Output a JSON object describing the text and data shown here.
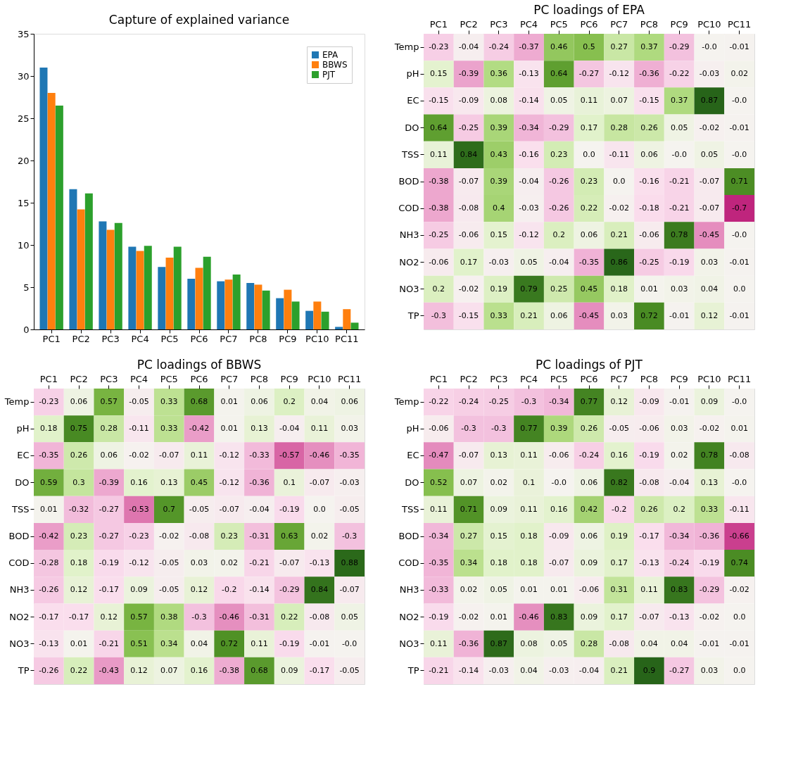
{
  "chart_data": [
    {
      "type": "bar",
      "title": "Capture of explained variance",
      "categories": [
        "PC1",
        "PC2",
        "PC3",
        "PC4",
        "PC5",
        "PC6",
        "PC7",
        "PC8",
        "PC9",
        "PC10",
        "PC11"
      ],
      "series": [
        {
          "name": "EPA",
          "color": "#1f77b4",
          "values": [
            31.0,
            16.6,
            12.8,
            9.8,
            7.4,
            6.0,
            5.7,
            5.5,
            3.7,
            2.2,
            0.3
          ]
        },
        {
          "name": "BBWS",
          "color": "#ff7f0e",
          "values": [
            28.0,
            14.2,
            11.8,
            9.3,
            8.5,
            7.3,
            5.9,
            5.3,
            4.7,
            3.3,
            2.4
          ]
        },
        {
          "name": "PJT",
          "color": "#2ca02c",
          "values": [
            26.5,
            16.1,
            12.6,
            9.9,
            9.8,
            8.6,
            6.5,
            4.6,
            3.3,
            2.1,
            0.8
          ]
        }
      ],
      "ylim": [
        0,
        35
      ],
      "yticks": [
        0,
        5,
        10,
        15,
        20,
        25,
        30,
        35
      ],
      "legend": "top right",
      "grid": false
    },
    {
      "type": "heatmap",
      "title": "PC loadings of EPA",
      "categories": [
        "PC1",
        "PC2",
        "PC3",
        "PC4",
        "PC5",
        "PC6",
        "PC7",
        "PC8",
        "PC9",
        "PC10",
        "PC11"
      ],
      "y_categories": [
        "Temp",
        "pH",
        "EC",
        "DO",
        "TSS",
        "BOD",
        "COD",
        "NH3",
        "NO2",
        "NO3",
        "TP"
      ],
      "data_labels": true,
      "cells": [
        [
          -0.23,
          -0.04,
          -0.24,
          -0.37,
          0.46,
          0.5,
          0.27,
          0.37,
          -0.29,
          -0.0,
          -0.01
        ],
        [
          0.15,
          -0.39,
          0.36,
          -0.13,
          0.64,
          -0.27,
          -0.12,
          -0.36,
          -0.22,
          -0.03,
          0.02
        ],
        [
          -0.15,
          -0.09,
          0.08,
          -0.14,
          0.05,
          0.11,
          0.07,
          -0.15,
          0.37,
          0.87,
          -0.0
        ],
        [
          0.64,
          -0.25,
          0.39,
          -0.34,
          -0.29,
          0.17,
          0.28,
          0.26,
          0.05,
          -0.02,
          -0.01
        ],
        [
          0.11,
          0.84,
          0.43,
          -0.16,
          0.23,
          0.0,
          -0.11,
          0.06,
          -0.0,
          0.05,
          -0.0
        ],
        [
          -0.38,
          -0.07,
          0.39,
          -0.04,
          -0.26,
          0.23,
          0.0,
          -0.16,
          -0.21,
          -0.07,
          0.71
        ],
        [
          -0.38,
          -0.08,
          0.4,
          -0.03,
          -0.26,
          0.22,
          -0.02,
          -0.18,
          -0.21,
          -0.07,
          -0.7
        ],
        [
          -0.25,
          -0.06,
          0.15,
          -0.12,
          0.2,
          0.06,
          0.21,
          -0.06,
          0.78,
          -0.45,
          -0.0
        ],
        [
          -0.06,
          0.17,
          -0.03,
          0.05,
          -0.04,
          -0.35,
          0.86,
          -0.25,
          -0.19,
          0.03,
          -0.01
        ],
        [
          0.2,
          -0.02,
          0.19,
          0.79,
          0.25,
          0.45,
          0.18,
          0.01,
          0.03,
          0.04,
          0.0
        ],
        [
          -0.3,
          -0.15,
          0.33,
          0.21,
          0.06,
          -0.45,
          0.03,
          0.72,
          -0.01,
          0.12,
          -0.01
        ]
      ],
      "cell_labels": [
        [
          "-0.23",
          "-0.04",
          "-0.24",
          "-0.37",
          "0.46",
          "0.5",
          "0.27",
          "0.37",
          "-0.29",
          "-0.0",
          "-0.01"
        ],
        [
          "0.15",
          "-0.39",
          "0.36",
          "-0.13",
          "0.64",
          "-0.27",
          "-0.12",
          "-0.36",
          "-0.22",
          "-0.03",
          "0.02"
        ],
        [
          "-0.15",
          "-0.09",
          "0.08",
          "-0.14",
          "0.05",
          "0.11",
          "0.07",
          "-0.15",
          "0.37",
          "0.87",
          "-0.0"
        ],
        [
          "0.64",
          "-0.25",
          "0.39",
          "-0.34",
          "-0.29",
          "0.17",
          "0.28",
          "0.26",
          "0.05",
          "-0.02",
          "-0.01"
        ],
        [
          "0.11",
          "0.84",
          "0.43",
          "-0.16",
          "0.23",
          "0.0",
          "-0.11",
          "0.06",
          "-0.0",
          "0.05",
          "-0.0"
        ],
        [
          "-0.38",
          "-0.07",
          "0.39",
          "-0.04",
          "-0.26",
          "0.23",
          "0.0",
          "-0.16",
          "-0.21",
          "-0.07",
          "0.71"
        ],
        [
          "-0.38",
          "-0.08",
          "0.4",
          "-0.03",
          "-0.26",
          "0.22",
          "-0.02",
          "-0.18",
          "-0.21",
          "-0.07",
          "-0.7"
        ],
        [
          "-0.25",
          "-0.06",
          "0.15",
          "-0.12",
          "0.2",
          "0.06",
          "0.21",
          "-0.06",
          "0.78",
          "-0.45",
          "-0.0"
        ],
        [
          "-0.06",
          "0.17",
          "-0.03",
          "0.05",
          "-0.04",
          "-0.35",
          "0.86",
          "-0.25",
          "-0.19",
          "0.03",
          "-0.01"
        ],
        [
          "0.2",
          "-0.02",
          "0.19",
          "0.79",
          "0.25",
          "0.45",
          "0.18",
          "0.01",
          "0.03",
          "0.04",
          "0.0"
        ],
        [
          "-0.3",
          "-0.15",
          "0.33",
          "0.21",
          "0.06",
          "-0.45",
          "0.03",
          "0.72",
          "-0.01",
          "0.12",
          "-0.01"
        ]
      ]
    },
    {
      "type": "heatmap",
      "title": "PC loadings of BBWS",
      "categories": [
        "PC1",
        "PC2",
        "PC3",
        "PC4",
        "PC5",
        "PC6",
        "PC7",
        "PC8",
        "PC9",
        "PC10",
        "PC11"
      ],
      "y_categories": [
        "Temp",
        "pH",
        "EC",
        "DO",
        "TSS",
        "BOD",
        "COD",
        "NH3",
        "NO2",
        "NO3",
        "TP"
      ],
      "data_labels": true,
      "cells": [
        [
          -0.23,
          0.06,
          0.57,
          -0.05,
          0.33,
          0.68,
          0.01,
          0.06,
          0.2,
          0.04,
          0.06
        ],
        [
          0.18,
          0.75,
          0.28,
          -0.11,
          0.33,
          -0.42,
          0.01,
          0.13,
          -0.04,
          0.11,
          0.03
        ],
        [
          -0.35,
          0.26,
          0.06,
          -0.02,
          -0.07,
          0.11,
          -0.12,
          -0.33,
          -0.57,
          -0.46,
          -0.35
        ],
        [
          0.59,
          0.3,
          -0.39,
          0.16,
          0.13,
          0.45,
          -0.12,
          -0.36,
          0.1,
          -0.07,
          -0.03
        ],
        [
          0.01,
          -0.32,
          -0.27,
          -0.53,
          0.7,
          -0.05,
          -0.07,
          -0.04,
          -0.19,
          0.0,
          -0.05
        ],
        [
          -0.42,
          0.23,
          -0.27,
          -0.23,
          -0.02,
          -0.08,
          0.23,
          -0.31,
          0.63,
          0.02,
          -0.3
        ],
        [
          -0.28,
          0.18,
          -0.19,
          -0.12,
          -0.05,
          0.03,
          0.02,
          -0.21,
          -0.07,
          -0.13,
          0.88
        ],
        [
          -0.26,
          0.12,
          -0.17,
          0.09,
          -0.05,
          0.12,
          -0.2,
          -0.14,
          -0.29,
          0.84,
          -0.07
        ],
        [
          -0.17,
          -0.17,
          0.12,
          0.57,
          0.38,
          -0.3,
          -0.46,
          -0.31,
          0.22,
          -0.08,
          0.05
        ],
        [
          -0.13,
          0.01,
          -0.21,
          0.51,
          0.34,
          0.04,
          0.72,
          0.11,
          -0.19,
          -0.01,
          -0.0
        ],
        [
          -0.26,
          0.22,
          -0.43,
          0.12,
          0.07,
          0.16,
          -0.38,
          0.68,
          0.09,
          -0.17,
          -0.05
        ]
      ],
      "cell_labels": [
        [
          "-0.23",
          "0.06",
          "0.57",
          "-0.05",
          "0.33",
          "0.68",
          "0.01",
          "0.06",
          "0.2",
          "0.04",
          "0.06"
        ],
        [
          "0.18",
          "0.75",
          "0.28",
          "-0.11",
          "0.33",
          "-0.42",
          "0.01",
          "0.13",
          "-0.04",
          "0.11",
          "0.03"
        ],
        [
          "-0.35",
          "0.26",
          "0.06",
          "-0.02",
          "-0.07",
          "0.11",
          "-0.12",
          "-0.33",
          "-0.57",
          "-0.46",
          "-0.35"
        ],
        [
          "0.59",
          "0.3",
          "-0.39",
          "0.16",
          "0.13",
          "0.45",
          "-0.12",
          "-0.36",
          "0.1",
          "-0.07",
          "-0.03"
        ],
        [
          "0.01",
          "-0.32",
          "-0.27",
          "-0.53",
          "0.7",
          "-0.05",
          "-0.07",
          "-0.04",
          "-0.19",
          "0.0",
          "-0.05"
        ],
        [
          "-0.42",
          "0.23",
          "-0.27",
          "-0.23",
          "-0.02",
          "-0.08",
          "0.23",
          "-0.31",
          "0.63",
          "0.02",
          "-0.3"
        ],
        [
          "-0.28",
          "0.18",
          "-0.19",
          "-0.12",
          "-0.05",
          "0.03",
          "0.02",
          "-0.21",
          "-0.07",
          "-0.13",
          "0.88"
        ],
        [
          "-0.26",
          "0.12",
          "-0.17",
          "0.09",
          "-0.05",
          "0.12",
          "-0.2",
          "-0.14",
          "-0.29",
          "0.84",
          "-0.07"
        ],
        [
          "-0.17",
          "-0.17",
          "0.12",
          "0.57",
          "0.38",
          "-0.3",
          "-0.46",
          "-0.31",
          "0.22",
          "-0.08",
          "0.05"
        ],
        [
          "-0.13",
          "0.01",
          "-0.21",
          "0.51",
          "0.34",
          "0.04",
          "0.72",
          "0.11",
          "-0.19",
          "-0.01",
          "-0.0"
        ],
        [
          "-0.26",
          "0.22",
          "-0.43",
          "0.12",
          "0.07",
          "0.16",
          "-0.38",
          "0.68",
          "0.09",
          "-0.17",
          "-0.05"
        ]
      ]
    },
    {
      "type": "heatmap",
      "title": "PC loadings of PJT",
      "categories": [
        "PC1",
        "PC2",
        "PC3",
        "PC4",
        "PC5",
        "PC6",
        "PC7",
        "PC8",
        "PC9",
        "PC10",
        "PC11"
      ],
      "y_categories": [
        "Temp",
        "pH",
        "EC",
        "DO",
        "TSS",
        "BOD",
        "COD",
        "NH3",
        "NO2",
        "NO3",
        "TP"
      ],
      "data_labels": true,
      "cells": [
        [
          -0.22,
          -0.24,
          -0.25,
          -0.3,
          -0.34,
          0.77,
          0.12,
          -0.09,
          -0.01,
          0.09,
          -0.0
        ],
        [
          -0.06,
          -0.3,
          -0.3,
          0.77,
          0.39,
          0.26,
          -0.05,
          -0.06,
          0.03,
          -0.02,
          0.01
        ],
        [
          -0.47,
          -0.07,
          0.13,
          0.11,
          -0.06,
          -0.24,
          0.16,
          -0.19,
          0.02,
          0.78,
          -0.08
        ],
        [
          0.52,
          0.07,
          0.02,
          0.1,
          -0.0,
          0.06,
          0.82,
          -0.08,
          -0.04,
          0.13,
          -0.0
        ],
        [
          0.11,
          0.71,
          0.09,
          0.11,
          0.16,
          0.42,
          -0.2,
          0.26,
          0.2,
          0.33,
          -0.11
        ],
        [
          -0.34,
          0.27,
          0.15,
          0.18,
          -0.09,
          0.06,
          0.19,
          -0.17,
          -0.34,
          -0.36,
          -0.66
        ],
        [
          -0.35,
          0.34,
          0.18,
          0.18,
          -0.07,
          0.09,
          0.17,
          -0.13,
          -0.24,
          -0.19,
          0.74
        ],
        [
          -0.33,
          0.02,
          0.05,
          0.01,
          0.01,
          -0.06,
          0.31,
          0.11,
          0.83,
          -0.29,
          -0.02
        ],
        [
          -0.19,
          -0.02,
          0.01,
          -0.46,
          0.83,
          0.09,
          0.17,
          -0.07,
          -0.13,
          -0.02,
          0.0
        ],
        [
          0.11,
          -0.36,
          0.87,
          0.08,
          0.05,
          0.28,
          -0.08,
          0.04,
          0.04,
          -0.01,
          -0.01
        ],
        [
          -0.21,
          -0.14,
          -0.03,
          0.04,
          -0.03,
          -0.04,
          0.21,
          0.9,
          -0.27,
          0.03,
          0.0
        ]
      ],
      "cell_labels": [
        [
          "-0.22",
          "-0.24",
          "-0.25",
          "-0.3",
          "-0.34",
          "0.77",
          "0.12",
          "-0.09",
          "-0.01",
          "0.09",
          "-0.0"
        ],
        [
          "-0.06",
          "-0.3",
          "-0.3",
          "0.77",
          "0.39",
          "0.26",
          "-0.05",
          "-0.06",
          "0.03",
          "-0.02",
          "0.01"
        ],
        [
          "-0.47",
          "-0.07",
          "0.13",
          "0.11",
          "-0.06",
          "-0.24",
          "0.16",
          "-0.19",
          "0.02",
          "0.78",
          "-0.08"
        ],
        [
          "0.52",
          "0.07",
          "0.02",
          "0.1",
          "-0.0",
          "0.06",
          "0.82",
          "-0.08",
          "-0.04",
          "0.13",
          "-0.0"
        ],
        [
          "0.11",
          "0.71",
          "0.09",
          "0.11",
          "0.16",
          "0.42",
          "-0.2",
          "0.26",
          "0.2",
          "0.33",
          "-0.11"
        ],
        [
          "-0.34",
          "0.27",
          "0.15",
          "0.18",
          "-0.09",
          "0.06",
          "0.19",
          "-0.17",
          "-0.34",
          "-0.36",
          "-0.66"
        ],
        [
          "-0.35",
          "0.34",
          "0.18",
          "0.18",
          "-0.07",
          "0.09",
          "0.17",
          "-0.13",
          "-0.24",
          "-0.19",
          "0.74"
        ],
        [
          "-0.33",
          "0.02",
          "0.05",
          "0.01",
          "0.01",
          "-0.06",
          "0.31",
          "0.11",
          "0.83",
          "-0.29",
          "-0.02"
        ],
        [
          "-0.19",
          "-0.02",
          "0.01",
          "-0.46",
          "0.83",
          "0.09",
          "0.17",
          "-0.07",
          "-0.13",
          "-0.02",
          "0.0"
        ],
        [
          "0.11",
          "-0.36",
          "0.87",
          "0.08",
          "0.05",
          "0.28",
          "-0.08",
          "0.04",
          "0.04",
          "-0.01",
          "-0.01"
        ],
        [
          "-0.21",
          "-0.14",
          "-0.03",
          "0.04",
          "-0.03",
          "-0.04",
          "0.21",
          "0.9",
          "-0.27",
          "0.03",
          "0.0"
        ]
      ]
    }
  ]
}
